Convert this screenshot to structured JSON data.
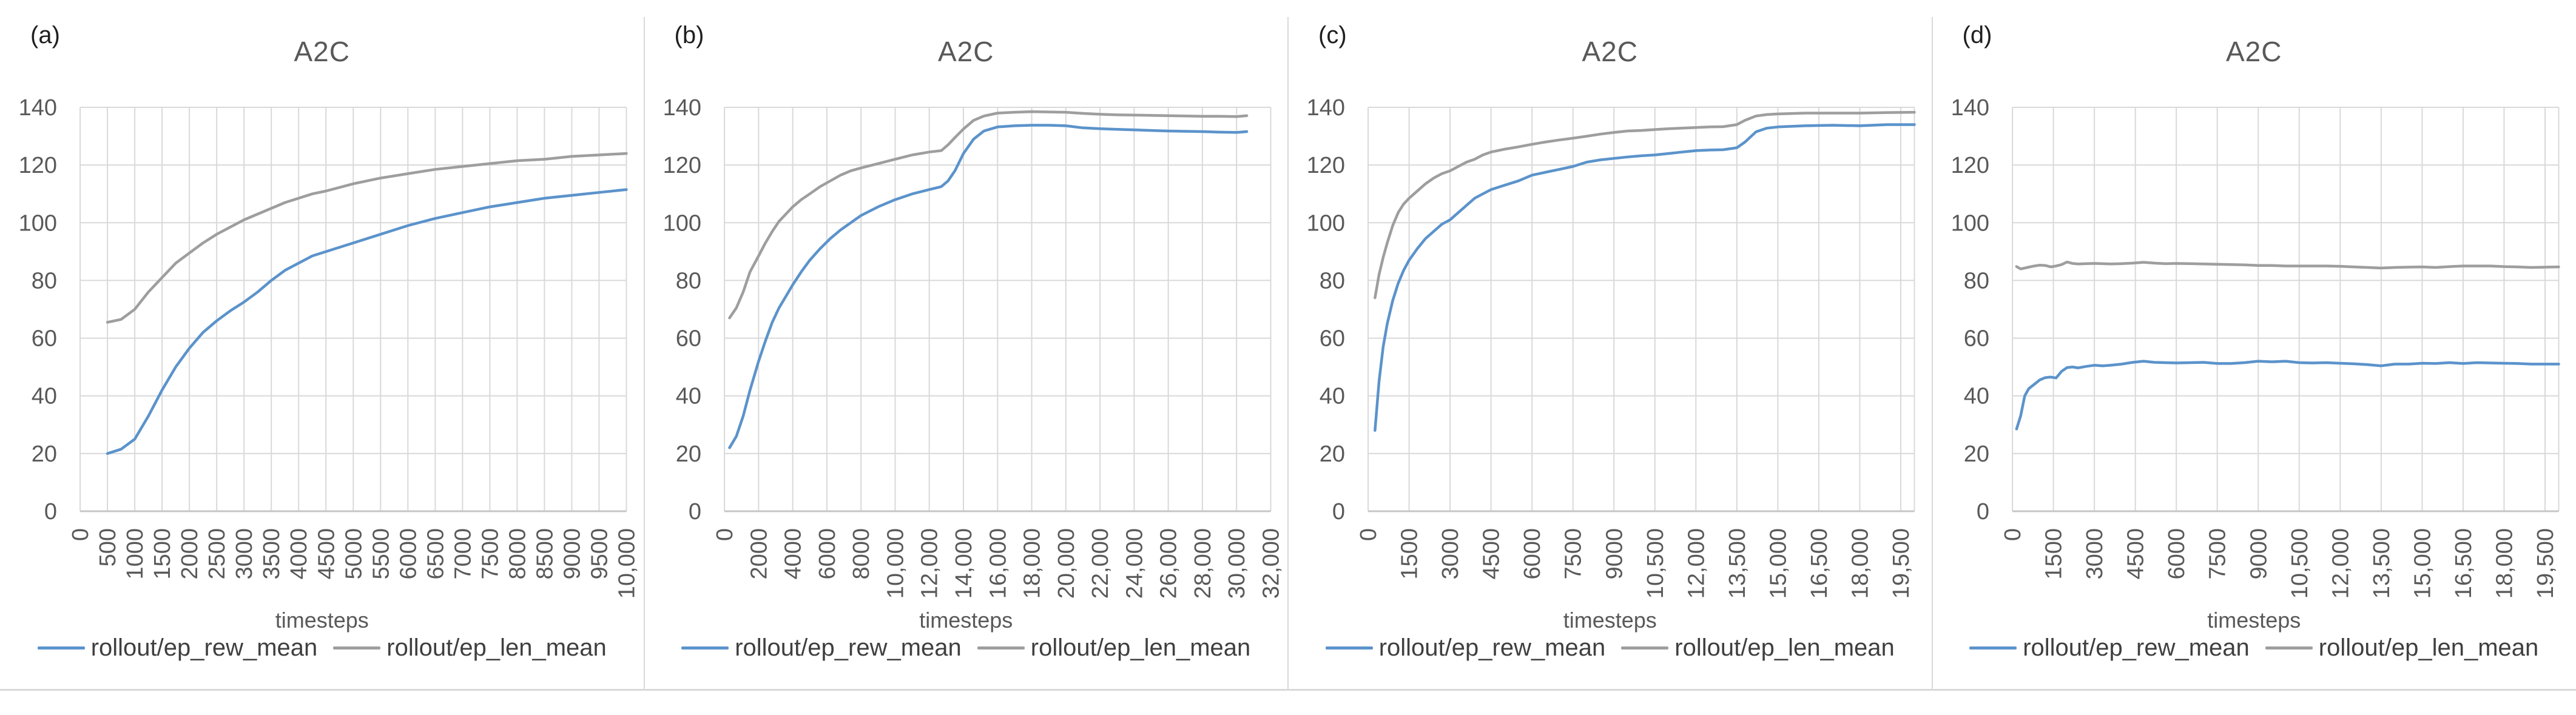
{
  "figure": {
    "background": "#ffffff",
    "rule_color": "#d9d9d9"
  },
  "colors": {
    "grid": "#d9d9d9",
    "axis_text": "#595959",
    "title_text": "#595959",
    "legend_text": "#3f3f3f",
    "panel_letter": "#1f1f1f",
    "series_blue": "#5b93cb",
    "series_gray": "#9e9e9e"
  },
  "panels": [
    {
      "letter": "(a)",
      "chart": 0
    },
    {
      "letter": "(b)",
      "chart": 1
    },
    {
      "letter": "(c)",
      "chart": 2
    },
    {
      "letter": "(d)",
      "chart": 3
    }
  ],
  "chart_data": [
    {
      "type": "line",
      "title": "A2C",
      "xlabel": "timesteps",
      "grid": true,
      "legend_position": "bottom",
      "ylim": [
        0,
        140
      ],
      "ytick_step": 20,
      "xlim": [
        0,
        10000
      ],
      "xticks": [
        0,
        500,
        1000,
        1500,
        2000,
        2500,
        3000,
        3500,
        4000,
        4500,
        5000,
        5500,
        6000,
        6500,
        7000,
        7500,
        8000,
        8500,
        9000,
        9500,
        10000
      ],
      "xtick_labels": [
        "0",
        "500",
        "1000",
        "1500",
        "2000",
        "2500",
        "3000",
        "3500",
        "4000",
        "4500",
        "5000",
        "5500",
        "6000",
        "6500",
        "7000",
        "7500",
        "8000",
        "8500",
        "9000",
        "9500",
        "10,000"
      ],
      "series": [
        {
          "name": "rollout/ep_rew_mean",
          "color": "#5b93cb",
          "x": [
            500,
            750,
            1000,
            1250,
            1500,
            1750,
            2000,
            2250,
            2500,
            2750,
            3000,
            3250,
            3500,
            3750,
            4000,
            4250,
            4500,
            5000,
            5500,
            6000,
            6500,
            7000,
            7500,
            8000,
            8500,
            9000,
            9500,
            10000
          ],
          "y": [
            20,
            21.5,
            25,
            33,
            42,
            50,
            56.5,
            62,
            66,
            69.5,
            72.5,
            76,
            80,
            83.5,
            86,
            88.5,
            90,
            93,
            96,
            99,
            101.5,
            103.5,
            105.5,
            107,
            108.5,
            109.5,
            110.5,
            111.5
          ]
        },
        {
          "name": "rollout/ep_len_mean",
          "color": "#9e9e9e",
          "x": [
            500,
            750,
            1000,
            1250,
            1500,
            1750,
            2000,
            2250,
            2500,
            2750,
            3000,
            3250,
            3500,
            3750,
            4000,
            4250,
            4500,
            5000,
            5500,
            6000,
            6500,
            7000,
            7500,
            8000,
            8500,
            9000,
            9500,
            10000
          ],
          "y": [
            65.5,
            66.5,
            70,
            76,
            81,
            86,
            89.5,
            93,
            96,
            98.5,
            101,
            103,
            105,
            107,
            108.5,
            110,
            111,
            113.5,
            115.5,
            117,
            118.5,
            119.5,
            120.5,
            121.5,
            122,
            123,
            123.5,
            124
          ]
        }
      ]
    },
    {
      "type": "line",
      "title": "A2C",
      "xlabel": "timesteps",
      "grid": true,
      "legend_position": "bottom",
      "ylim": [
        0,
        140
      ],
      "ytick_step": 20,
      "xlim": [
        0,
        32000
      ],
      "xticks": [
        0,
        2000,
        4000,
        6000,
        8000,
        10000,
        12000,
        14000,
        16000,
        18000,
        20000,
        22000,
        24000,
        26000,
        28000,
        30000,
        32000
      ],
      "xtick_labels": [
        "0",
        "2000",
        "4000",
        "6000",
        "8000",
        "10,000",
        "12,000",
        "14,000",
        "16,000",
        "18,000",
        "20,000",
        "22,000",
        "24,000",
        "26,000",
        "28,000",
        "30,000",
        "32,000"
      ],
      "series": [
        {
          "name": "rollout/ep_rew_mean",
          "color": "#5b93cb",
          "x": [
            300,
            700,
            1100,
            1500,
            2000,
            2400,
            2800,
            3200,
            3600,
            4000,
            4500,
            5000,
            5600,
            6200,
            6800,
            7400,
            8000,
            9000,
            10000,
            11000,
            12000,
            12700,
            13100,
            13500,
            14000,
            14600,
            15200,
            16000,
            17000,
            18000,
            19000,
            20000,
            21000,
            22000,
            23000,
            24000,
            25000,
            26000,
            27000,
            28000,
            29000,
            30000,
            30600
          ],
          "y": [
            22,
            26,
            33,
            42,
            52,
            59,
            65.5,
            70.5,
            74.5,
            78.5,
            83,
            87,
            91,
            94.5,
            97.5,
            100,
            102.5,
            105.5,
            108,
            110,
            111.5,
            112.5,
            114.5,
            118,
            124,
            129,
            131.8,
            133.2,
            133.6,
            133.8,
            133.8,
            133.6,
            132.9,
            132.6,
            132.4,
            132.2,
            132,
            131.8,
            131.7,
            131.6,
            131.4,
            131.3,
            131.6
          ]
        },
        {
          "name": "rollout/ep_len_mean",
          "color": "#9e9e9e",
          "x": [
            300,
            700,
            1100,
            1500,
            2000,
            2400,
            2800,
            3200,
            3600,
            4000,
            4500,
            5000,
            5600,
            6200,
            6800,
            7400,
            8000,
            9000,
            10000,
            11000,
            12000,
            12700,
            13100,
            13500,
            14000,
            14600,
            15200,
            16000,
            17000,
            18000,
            19000,
            20000,
            21000,
            22000,
            23000,
            24000,
            25000,
            26000,
            27000,
            28000,
            29000,
            30000,
            30600
          ],
          "y": [
            67,
            70.5,
            76,
            83,
            88.5,
            93,
            97,
            100.5,
            103,
            105.5,
            108,
            110,
            112.5,
            114.5,
            116.5,
            118,
            119,
            120.5,
            122,
            123.5,
            124.5,
            125,
            127,
            129.5,
            132.5,
            135.5,
            137,
            138,
            138.3,
            138.5,
            138.4,
            138.3,
            137.9,
            137.6,
            137.4,
            137.3,
            137.2,
            137.1,
            137,
            136.9,
            136.9,
            136.8,
            137.1
          ]
        }
      ]
    },
    {
      "type": "line",
      "title": "A2C",
      "xlabel": "timesteps",
      "grid": true,
      "legend_position": "bottom",
      "ylim": [
        0,
        140
      ],
      "ytick_step": 20,
      "xlim": [
        0,
        20000
      ],
      "xticks": [
        0,
        1500,
        3000,
        4500,
        6000,
        7500,
        9000,
        10500,
        12000,
        13500,
        15000,
        16500,
        18000,
        19500
      ],
      "xtick_labels": [
        "0",
        "1500",
        "3000",
        "4500",
        "6000",
        "7500",
        "9000",
        "10,500",
        "12,000",
        "13,500",
        "15,000",
        "16,500",
        "18,000",
        "19,500"
      ],
      "series": [
        {
          "name": "rollout/ep_rew_mean",
          "color": "#5b93cb",
          "x": [
            250,
            400,
            550,
            700,
            900,
            1100,
            1300,
            1500,
            1800,
            2100,
            2400,
            2700,
            3000,
            3300,
            3600,
            3900,
            4200,
            4500,
            5000,
            5500,
            6000,
            6500,
            7000,
            7500,
            8000,
            8500,
            9000,
            9500,
            10000,
            10500,
            11000,
            11500,
            12000,
            12500,
            13000,
            13500,
            13800,
            14200,
            14600,
            15000,
            16000,
            17000,
            18000,
            19000,
            20000
          ],
          "y": [
            28,
            45,
            57,
            65,
            73,
            79,
            83.5,
            87,
            91,
            94.5,
            97,
            99.5,
            101,
            103.5,
            106,
            108.5,
            110,
            111.5,
            113,
            114.5,
            116.5,
            117.5,
            118.5,
            119.5,
            121,
            121.8,
            122.3,
            122.8,
            123.2,
            123.5,
            124,
            124.5,
            125,
            125.2,
            125.3,
            126,
            128,
            131.5,
            132.8,
            133.2,
            133.6,
            133.8,
            133.6,
            134,
            134
          ]
        },
        {
          "name": "rollout/ep_len_mean",
          "color": "#9e9e9e",
          "x": [
            250,
            400,
            550,
            700,
            900,
            1100,
            1300,
            1500,
            1800,
            2100,
            2400,
            2700,
            3000,
            3300,
            3600,
            3900,
            4200,
            4500,
            5000,
            5500,
            6000,
            6500,
            7000,
            7500,
            8000,
            8500,
            9000,
            9500,
            10000,
            10500,
            11000,
            11500,
            12000,
            12500,
            13000,
            13500,
            13800,
            14200,
            14600,
            15000,
            16000,
            17000,
            18000,
            19000,
            20000
          ],
          "y": [
            74,
            82,
            88,
            93,
            99,
            103.5,
            106.5,
            108.5,
            111,
            113.5,
            115.5,
            117,
            118,
            119.5,
            121,
            122,
            123.5,
            124.5,
            125.5,
            126.3,
            127.2,
            128,
            128.7,
            129.3,
            130,
            130.7,
            131.3,
            131.8,
            132,
            132.3,
            132.6,
            132.8,
            133,
            133.2,
            133.3,
            134,
            135.5,
            137,
            137.5,
            137.7,
            138,
            138,
            138,
            138.2,
            138.3
          ]
        }
      ]
    },
    {
      "type": "line",
      "title": "A2C",
      "xlabel": "timesteps",
      "grid": true,
      "legend_position": "bottom",
      "ylim": [
        0,
        140
      ],
      "ytick_step": 20,
      "xlim": [
        0,
        20000
      ],
      "xticks": [
        0,
        1500,
        3000,
        4500,
        6000,
        7500,
        9000,
        10500,
        12000,
        13500,
        15000,
        16500,
        18000,
        19500
      ],
      "xtick_labels": [
        "0",
        "1500",
        "3000",
        "4500",
        "6000",
        "7500",
        "9000",
        "10,500",
        "12,000",
        "13,500",
        "15,000",
        "16,500",
        "18,000",
        "19,500"
      ],
      "series": [
        {
          "name": "rollout/ep_rew_mean",
          "color": "#5b93cb",
          "x": [
            150,
            300,
            450,
            600,
            800,
            1000,
            1200,
            1400,
            1600,
            1800,
            2000,
            2200,
            2400,
            2700,
            3000,
            3300,
            3600,
            4000,
            4400,
            4800,
            5200,
            5600,
            6000,
            6500,
            7000,
            7500,
            8000,
            8500,
            9000,
            9500,
            10000,
            10500,
            11000,
            11500,
            12000,
            12500,
            13000,
            13500,
            14000,
            14500,
            15000,
            15500,
            16000,
            16500,
            17000,
            17500,
            18000,
            18500,
            19000,
            19500,
            20000
          ],
          "y": [
            28.5,
            33,
            40,
            42.5,
            44,
            45.5,
            46.3,
            46.5,
            46.2,
            48.5,
            49.8,
            50,
            49.7,
            50.2,
            50.6,
            50.4,
            50.6,
            51,
            51.6,
            52,
            51.6,
            51.5,
            51.4,
            51.5,
            51.6,
            51.2,
            51.2,
            51.5,
            52,
            51.8,
            52,
            51.5,
            51.4,
            51.5,
            51.3,
            51.1,
            50.8,
            50.4,
            51,
            51,
            51.3,
            51.2,
            51.5,
            51.2,
            51.5,
            51.4,
            51.3,
            51.2,
            51,
            51,
            51
          ]
        },
        {
          "name": "rollout/ep_len_mean",
          "color": "#9e9e9e",
          "x": [
            150,
            300,
            450,
            600,
            800,
            1000,
            1200,
            1400,
            1600,
            1800,
            2000,
            2200,
            2400,
            2700,
            3000,
            3300,
            3600,
            4000,
            4400,
            4800,
            5200,
            5600,
            6000,
            6500,
            7000,
            7500,
            8000,
            8500,
            9000,
            9500,
            10000,
            10500,
            11000,
            11500,
            12000,
            12500,
            13000,
            13500,
            14000,
            14500,
            15000,
            15500,
            16000,
            16500,
            17000,
            17500,
            18000,
            18500,
            19000,
            19500,
            20000
          ],
          "y": [
            84.8,
            84,
            84.3,
            84.6,
            85,
            85.3,
            85.2,
            84.7,
            85,
            85.5,
            86.4,
            85.9,
            85.7,
            85.8,
            85.9,
            85.8,
            85.7,
            85.8,
            86,
            86.3,
            86,
            85.8,
            85.9,
            85.8,
            85.7,
            85.6,
            85.5,
            85.4,
            85.2,
            85.2,
            85,
            85,
            85,
            85,
            84.9,
            84.7,
            84.5,
            84.3,
            84.5,
            84.6,
            84.7,
            84.5,
            84.8,
            85,
            85,
            85,
            84.8,
            84.7,
            84.5,
            84.6,
            84.7
          ]
        }
      ]
    }
  ]
}
